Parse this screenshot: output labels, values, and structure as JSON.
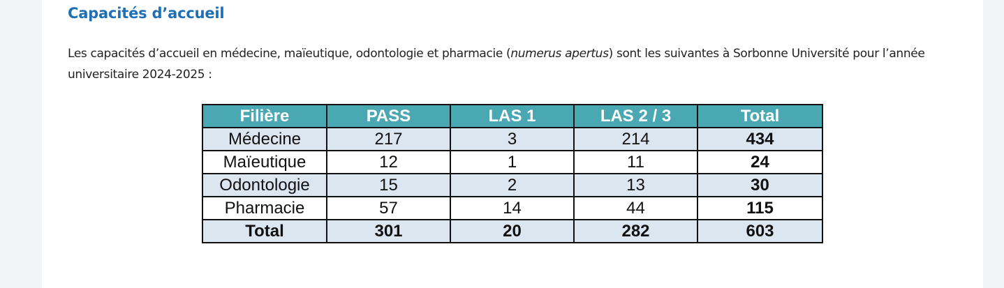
{
  "section": {
    "title": "Capacités d’accueil",
    "intro_before": "Les capacités d’accueil en médecine, maïeutique, odontologie et pharmacie (",
    "intro_em": "numerus apertus",
    "intro_after": ") sont les suivantes à Sorbonne Université pour l’année universitaire 2024-2025 :"
  },
  "table": {
    "headers": [
      "Filière",
      "PASS",
      "LAS 1",
      "LAS 2 / 3",
      "Total"
    ],
    "rows": [
      [
        "Médecine",
        "217",
        "3",
        "214",
        "434"
      ],
      [
        "Maïeutique",
        "12",
        "1",
        "11",
        "24"
      ],
      [
        "Odontologie",
        "15",
        "2",
        "13",
        "30"
      ],
      [
        "Pharmacie",
        "57",
        "14",
        "44",
        "115"
      ],
      [
        "Total",
        "301",
        "20",
        "282",
        "603"
      ]
    ]
  },
  "colors": {
    "title": "#1f6fb5",
    "header_bg": "#4aa8b3",
    "row_shade": "#dce6f1"
  }
}
